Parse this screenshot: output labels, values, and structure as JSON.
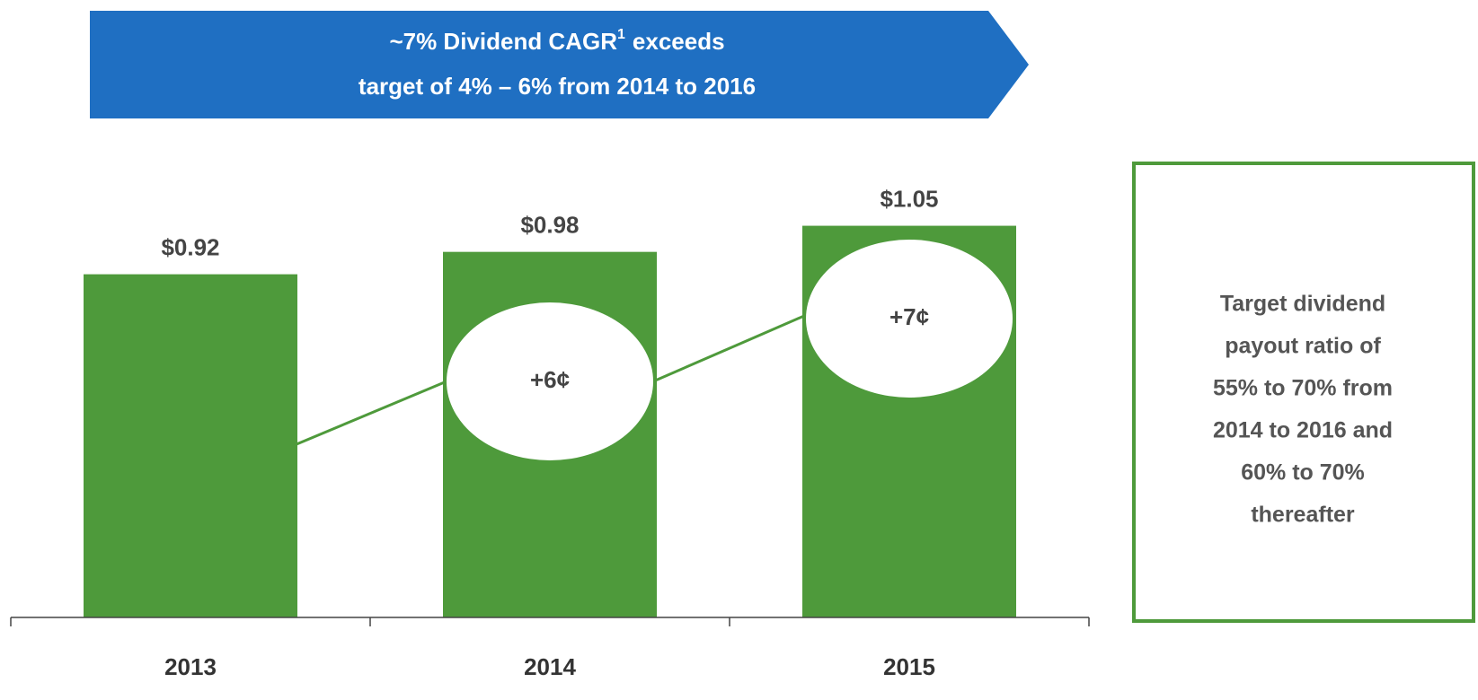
{
  "chart_data": {
    "type": "bar",
    "title": [
      "~7% Dividend CAGR",
      "1",
      "exceeds",
      "target of 4% – 6% from 2014 to 2016"
    ],
    "categories": [
      "2013",
      "2014",
      "2015"
    ],
    "values": [
      0.92,
      0.98,
      1.05
    ],
    "value_labels": [
      "$0.92",
      "$0.98",
      "$1.05"
    ],
    "color": "#4e9a3b",
    "ylim": [
      0,
      1.15
    ],
    "annotations": [
      "+6¢",
      "+7¢"
    ],
    "side_note": [
      "Target dividend",
      "payout ratio of",
      "55% to 70% from",
      "2014 to 2016 and",
      "60% to 70%",
      "thereafter"
    ]
  }
}
